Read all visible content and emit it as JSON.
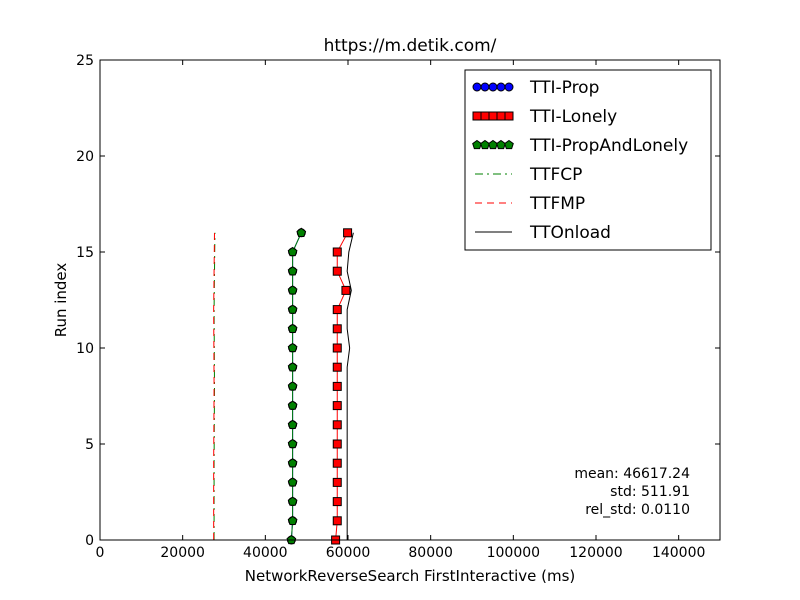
{
  "chart_data": {
    "type": "line",
    "title": "https://m.detik.com/",
    "xlabel": "NetworkReverseSearch FirstInteractive (ms)",
    "ylabel": "Run index",
    "xlim": [
      0,
      150000
    ],
    "ylim": [
      0,
      25
    ],
    "xticks": [
      0,
      20000,
      40000,
      60000,
      80000,
      100000,
      120000,
      140000
    ],
    "yticks": [
      0,
      5,
      10,
      15,
      20,
      25
    ],
    "grid": false,
    "legend_position": "top-right",
    "series": [
      {
        "name": "TTI-Prop",
        "style": "circle-markers",
        "color": "#0000ff",
        "points": [
          [
            46300,
            0
          ],
          [
            46600,
            1
          ],
          [
            46600,
            2
          ],
          [
            46600,
            3
          ],
          [
            46600,
            4
          ],
          [
            46600,
            5
          ],
          [
            46600,
            6
          ],
          [
            46600,
            7
          ],
          [
            46600,
            8
          ],
          [
            46600,
            9
          ],
          [
            46600,
            10
          ],
          [
            46600,
            11
          ],
          [
            46600,
            12
          ],
          [
            46600,
            13
          ],
          [
            46600,
            14
          ],
          [
            46600,
            15
          ],
          [
            48700,
            16
          ]
        ]
      },
      {
        "name": "TTI-Lonely",
        "style": "square-markers",
        "color": "#ff0000",
        "points": [
          [
            57000,
            0
          ],
          [
            57400,
            1
          ],
          [
            57400,
            2
          ],
          [
            57400,
            3
          ],
          [
            57400,
            4
          ],
          [
            57400,
            5
          ],
          [
            57400,
            6
          ],
          [
            57400,
            7
          ],
          [
            57400,
            8
          ],
          [
            57400,
            9
          ],
          [
            57400,
            10
          ],
          [
            57400,
            11
          ],
          [
            57400,
            12
          ],
          [
            59500,
            13
          ],
          [
            57400,
            14
          ],
          [
            57400,
            15
          ],
          [
            59900,
            16
          ]
        ]
      },
      {
        "name": "TTI-PropAndLonely",
        "style": "pentagon-markers",
        "color": "#008000",
        "points": [
          [
            46300,
            0
          ],
          [
            46600,
            1
          ],
          [
            46600,
            2
          ],
          [
            46600,
            3
          ],
          [
            46600,
            4
          ],
          [
            46600,
            5
          ],
          [
            46600,
            6
          ],
          [
            46600,
            7
          ],
          [
            46600,
            8
          ],
          [
            46600,
            9
          ],
          [
            46600,
            10
          ],
          [
            46600,
            11
          ],
          [
            46600,
            12
          ],
          [
            46600,
            13
          ],
          [
            46600,
            14
          ],
          [
            46600,
            15
          ],
          [
            48700,
            16
          ]
        ]
      },
      {
        "name": "TTFCP",
        "style": "dashdot",
        "color": "#008000",
        "points": [
          [
            27600,
            0
          ],
          [
            27600,
            4
          ],
          [
            27700,
            8
          ],
          [
            27600,
            12
          ],
          [
            27800,
            16
          ]
        ]
      },
      {
        "name": "TTFMP",
        "style": "dashed",
        "color": "#ff0000",
        "points": [
          [
            27500,
            0
          ],
          [
            27500,
            4
          ],
          [
            27600,
            8
          ],
          [
            27500,
            12
          ],
          [
            27700,
            16
          ]
        ]
      },
      {
        "name": "TTOnload",
        "style": "solid",
        "color": "#000000",
        "points": [
          [
            59800,
            0
          ],
          [
            59800,
            1
          ],
          [
            59800,
            2
          ],
          [
            59800,
            3
          ],
          [
            59800,
            4
          ],
          [
            59800,
            5
          ],
          [
            59800,
            6
          ],
          [
            59800,
            7
          ],
          [
            59800,
            8
          ],
          [
            59800,
            9
          ],
          [
            60400,
            10
          ],
          [
            59800,
            11
          ],
          [
            59800,
            12
          ],
          [
            60800,
            13
          ],
          [
            59800,
            14
          ],
          [
            60200,
            15
          ],
          [
            61300,
            16
          ]
        ]
      }
    ],
    "annotations": [
      "mean: 46617.24",
      "std: 511.91",
      "rel_std: 0.0110"
    ]
  }
}
